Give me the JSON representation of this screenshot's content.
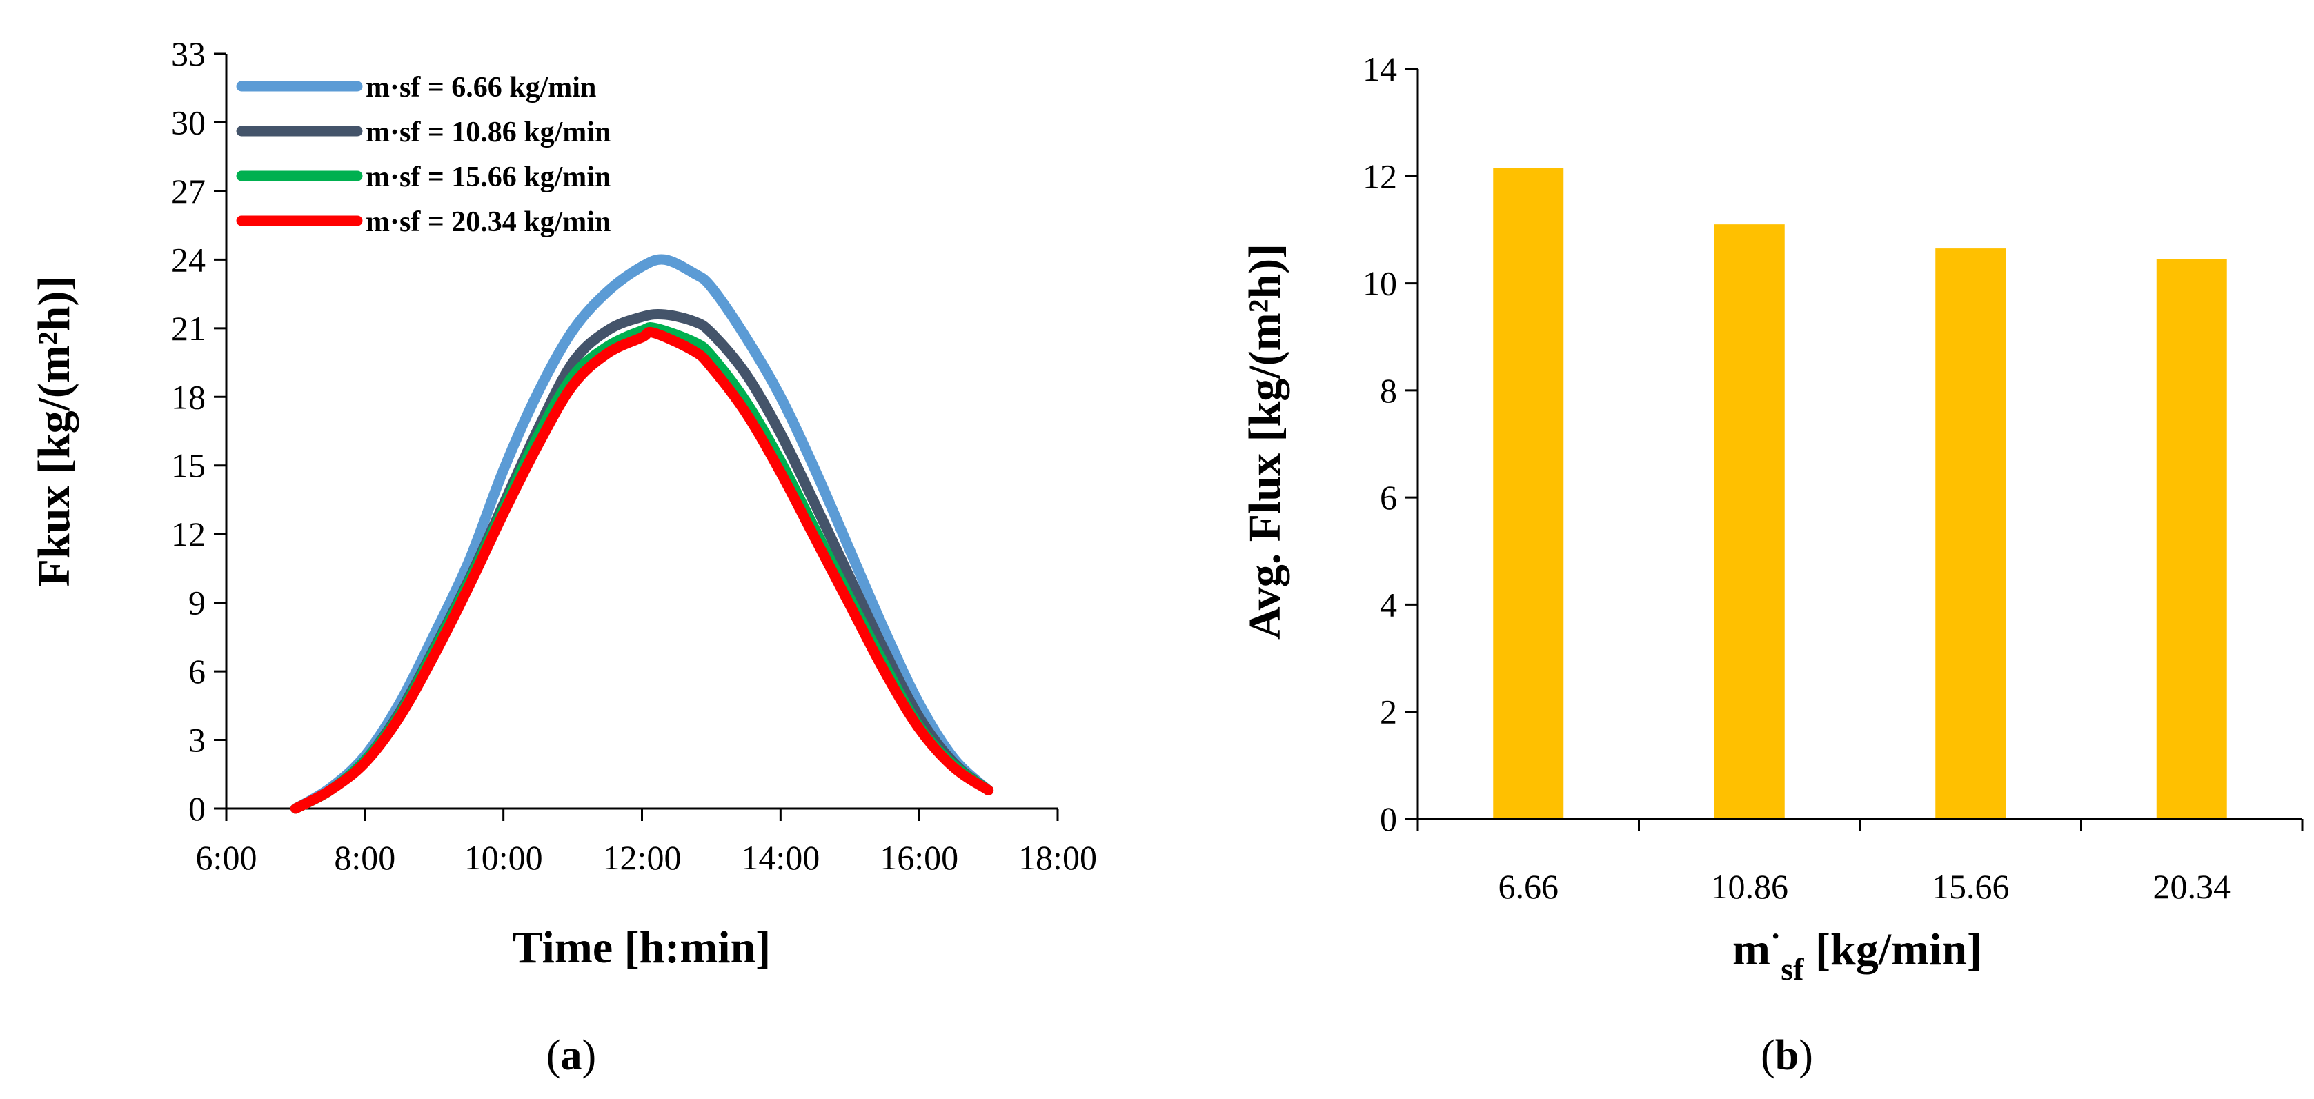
{
  "chart_data": [
    {
      "type": "line",
      "panel_label": "a",
      "xlabel": "Time [h:min]",
      "ylabel": "Fkux [kg/(m²h)]",
      "x_ticks": [
        "6:00",
        "8:00",
        "10:00",
        "12:00",
        "14:00",
        "16:00",
        "18:00"
      ],
      "y_ticks": [
        "0",
        "3",
        "6",
        "9",
        "12",
        "15",
        "18",
        "21",
        "24",
        "27",
        "30",
        "33"
      ],
      "xlim_hours": [
        6,
        18
      ],
      "ylim": [
        0,
        33
      ],
      "legend_position": "top-left",
      "series": [
        {
          "name": "m·sf = 6.66 kg/min",
          "color": "#5b9bd5",
          "x_hours": [
            7.0,
            7.5,
            8.0,
            8.5,
            9.0,
            9.5,
            10.0,
            10.5,
            11.0,
            11.5,
            12.0,
            12.33,
            12.75,
            13.0,
            13.5,
            14.0,
            14.5,
            15.0,
            15.5,
            16.0,
            16.5,
            17.0
          ],
          "values": [
            0,
            0.9,
            2.3,
            4.6,
            7.6,
            10.8,
            14.8,
            18.2,
            20.9,
            22.6,
            23.7,
            24.0,
            23.4,
            22.8,
            20.6,
            18.0,
            14.8,
            11.3,
            7.8,
            4.6,
            2.2,
            0.8
          ]
        },
        {
          "name": "m·sf = 10.86 kg/min",
          "color": "#44546a",
          "x_hours": [
            7.0,
            7.5,
            8.0,
            8.5,
            9.0,
            9.5,
            10.0,
            10.5,
            11.0,
            11.5,
            12.0,
            12.33,
            12.75,
            13.0,
            13.5,
            14.0,
            14.5,
            15.0,
            15.5,
            16.0,
            16.5,
            17.0
          ],
          "values": [
            0,
            0.8,
            2.1,
            4.2,
            7.0,
            10.0,
            13.3,
            16.6,
            19.5,
            20.9,
            21.5,
            21.6,
            21.3,
            20.8,
            19.0,
            16.4,
            13.3,
            10.1,
            6.9,
            4.0,
            2.0,
            0.8
          ]
        },
        {
          "name": "m·sf = 15.66 kg/min",
          "color": "#00b050",
          "x_hours": [
            7.0,
            7.5,
            8.0,
            8.5,
            9.0,
            9.5,
            10.0,
            10.5,
            11.0,
            11.5,
            12.0,
            12.2,
            12.75,
            13.0,
            13.5,
            14.0,
            14.5,
            15.0,
            15.5,
            16.0,
            16.5,
            17.0
          ],
          "values": [
            0,
            0.8,
            2.1,
            4.1,
            6.9,
            9.9,
            13.1,
            16.3,
            18.9,
            20.2,
            20.9,
            21.0,
            20.4,
            19.8,
            17.8,
            15.2,
            12.2,
            9.2,
            6.3,
            3.6,
            1.9,
            0.8
          ]
        },
        {
          "name": "m·sf = 20.34 kg/min",
          "color": "#ff0000",
          "x_hours": [
            7.0,
            7.5,
            8.0,
            8.5,
            9.0,
            9.5,
            10.0,
            10.5,
            11.0,
            11.5,
            12.0,
            12.17,
            12.75,
            13.0,
            13.5,
            14.0,
            14.5,
            15.0,
            15.5,
            16.0,
            16.5,
            17.0
          ],
          "values": [
            0,
            0.8,
            2.0,
            4.0,
            6.7,
            9.7,
            12.9,
            15.9,
            18.5,
            19.9,
            20.6,
            20.8,
            20.0,
            19.3,
            17.3,
            14.7,
            11.8,
            8.9,
            6.0,
            3.5,
            1.8,
            0.8
          ]
        }
      ]
    },
    {
      "type": "bar",
      "panel_label": "b",
      "xlabel_main": "m",
      "xlabel_superscript": "·",
      "xlabel_subscript": "sf",
      "xlabel_unit": " [kg/min]",
      "ylabel": "Avg. Flux [kg/(m²h)]",
      "categories": [
        "6.66",
        "10.86",
        "15.66",
        "20.34"
      ],
      "values": [
        12.15,
        11.1,
        10.65,
        10.45
      ],
      "y_ticks": [
        "0",
        "2",
        "4",
        "6",
        "8",
        "10",
        "12",
        "14"
      ],
      "ylim": [
        0,
        14
      ],
      "bar_color": "#ffc000"
    }
  ]
}
